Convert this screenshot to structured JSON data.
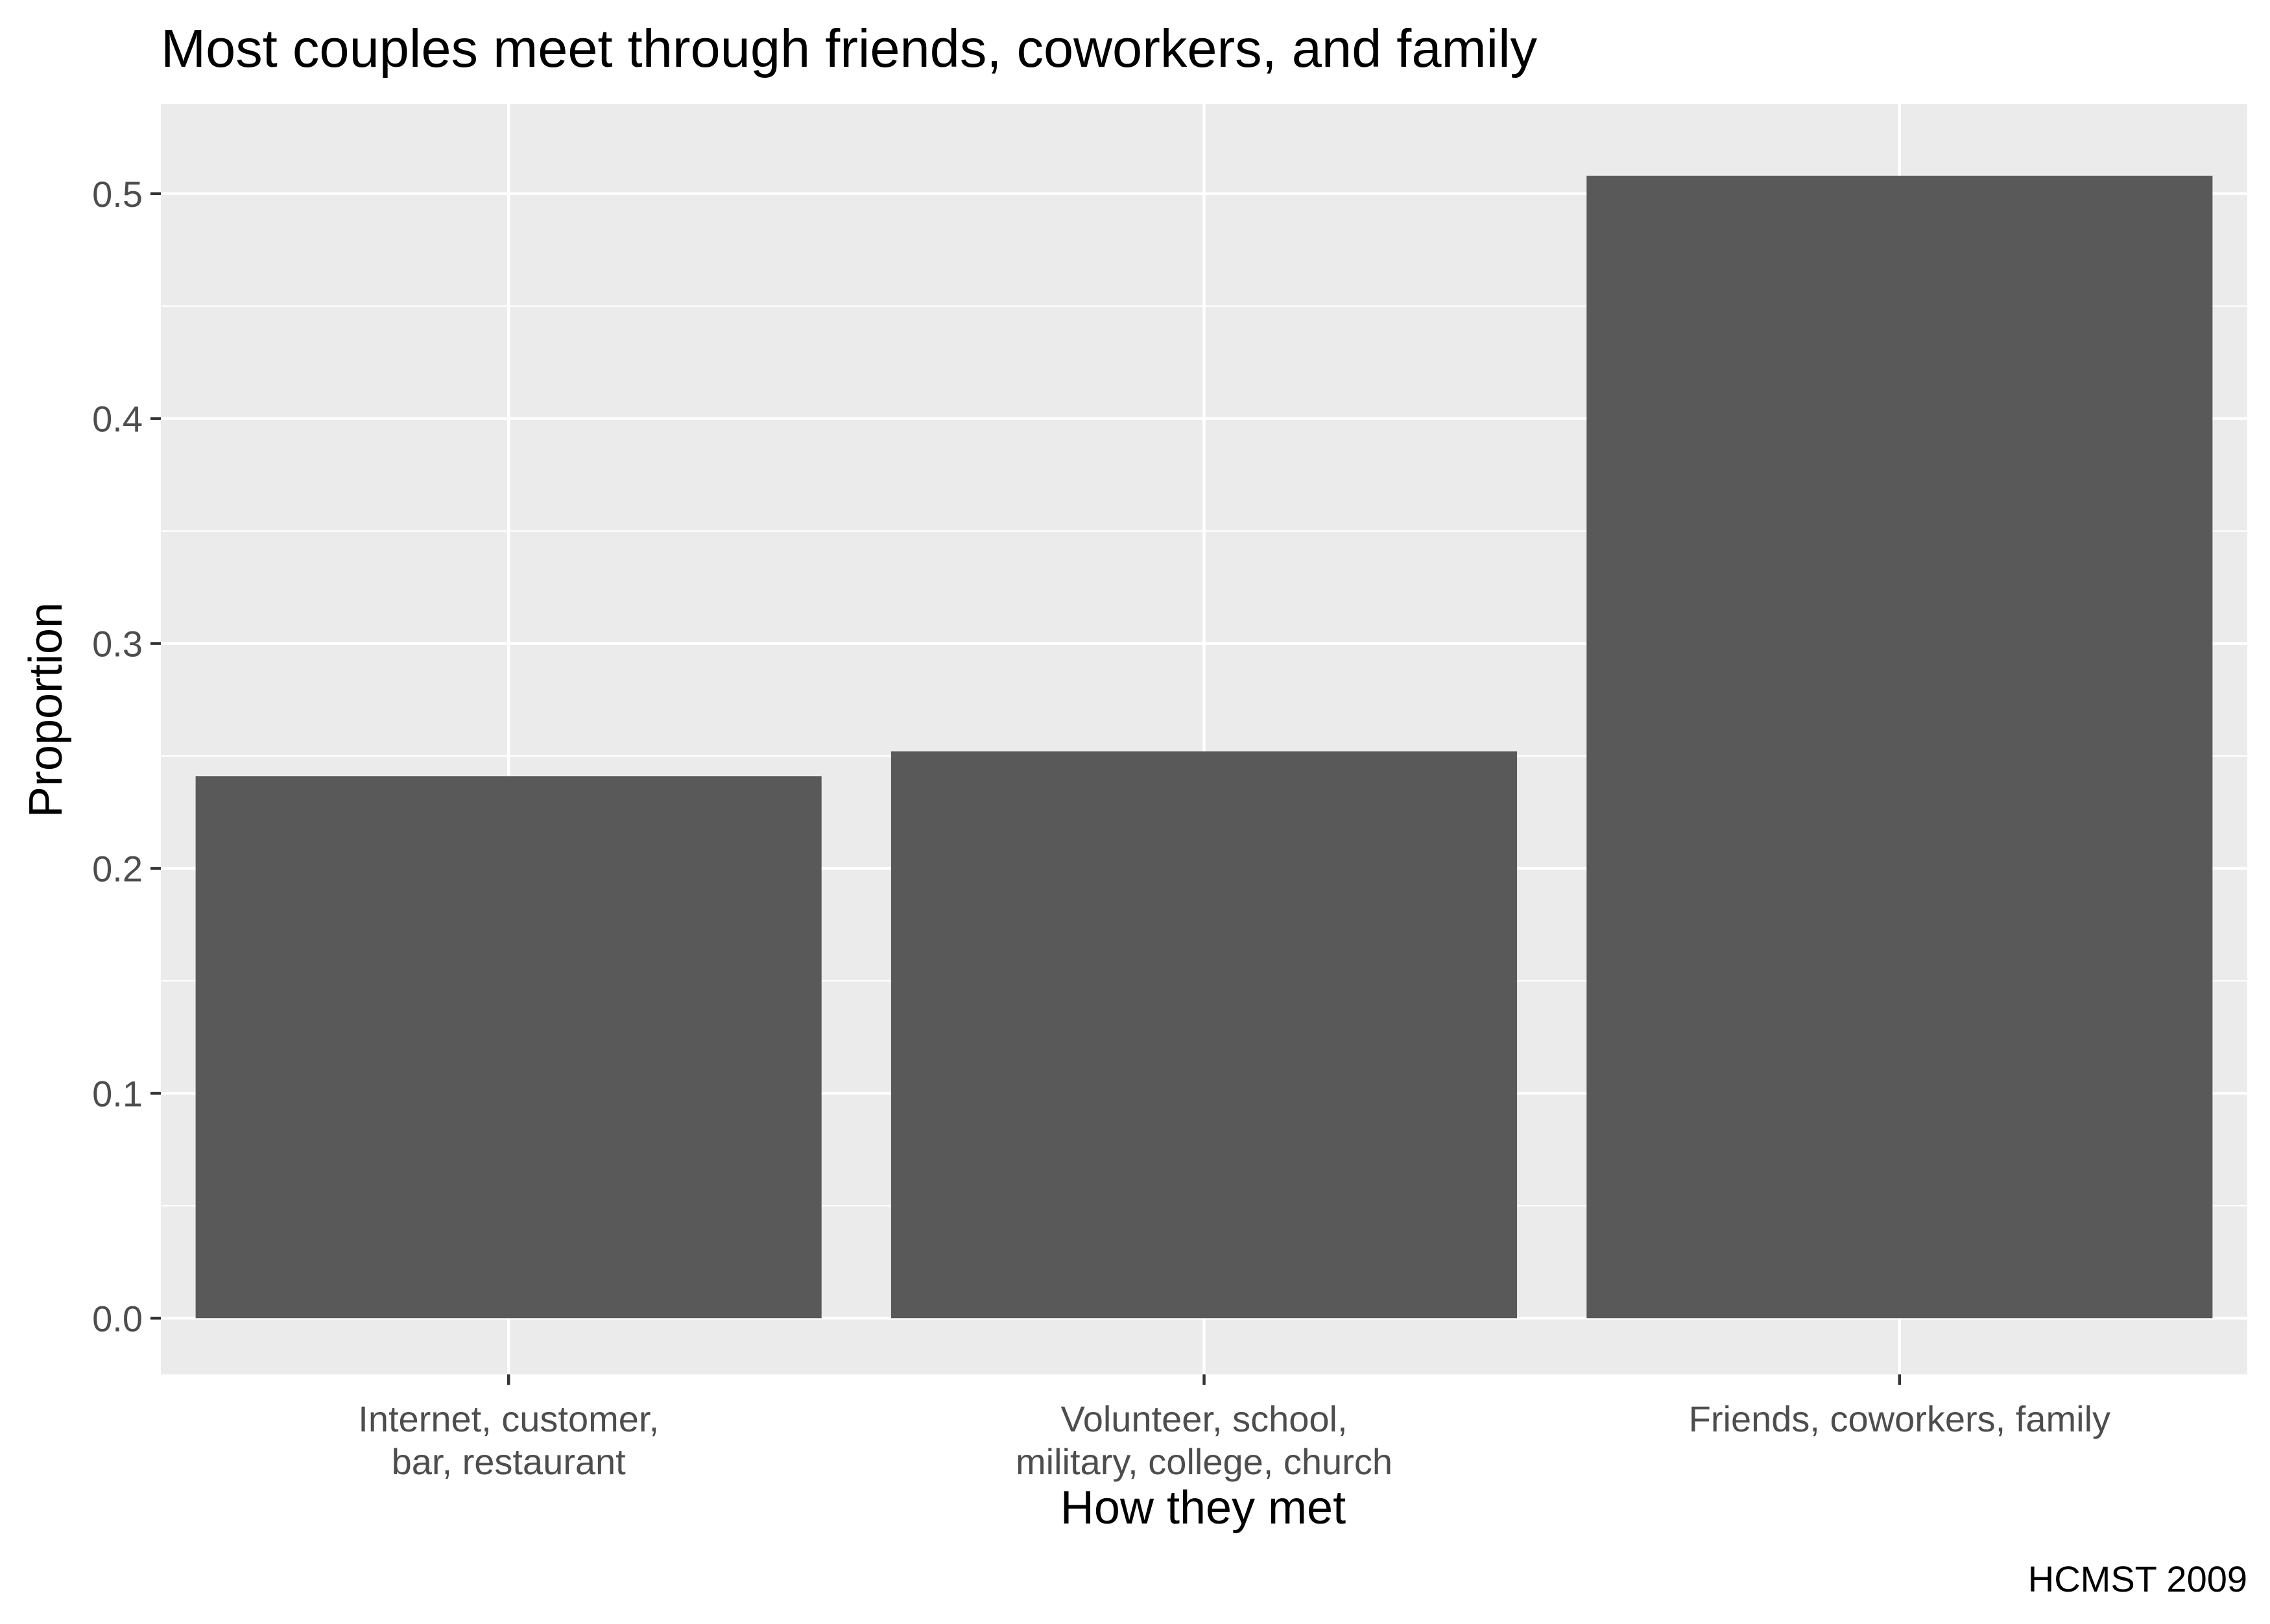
{
  "chart_data": {
    "type": "bar",
    "title": "Most couples meet through friends, coworkers, and family",
    "xlabel": "How they met",
    "ylabel": "Proportion",
    "caption": "HCMST 2009",
    "categories": [
      [
        "Internet, customer,",
        "bar, restaurant"
      ],
      [
        "Volunteer, school,",
        "military, college, church"
      ],
      [
        "Friends, coworkers, family"
      ]
    ],
    "values": [
      0.241,
      0.252,
      0.508
    ],
    "ylim": [
      -0.025,
      0.54
    ],
    "yticks": [
      0.0,
      0.1,
      0.2,
      0.3,
      0.4,
      0.5
    ],
    "ytick_labels": [
      "0.0",
      "0.1",
      "0.2",
      "0.3",
      "0.4",
      "0.5"
    ],
    "grid": true,
    "legend": "none",
    "colors": {
      "bar": "#595959",
      "panel": "#ebebeb",
      "grid": "#ffffff",
      "tick": "#333333"
    }
  }
}
